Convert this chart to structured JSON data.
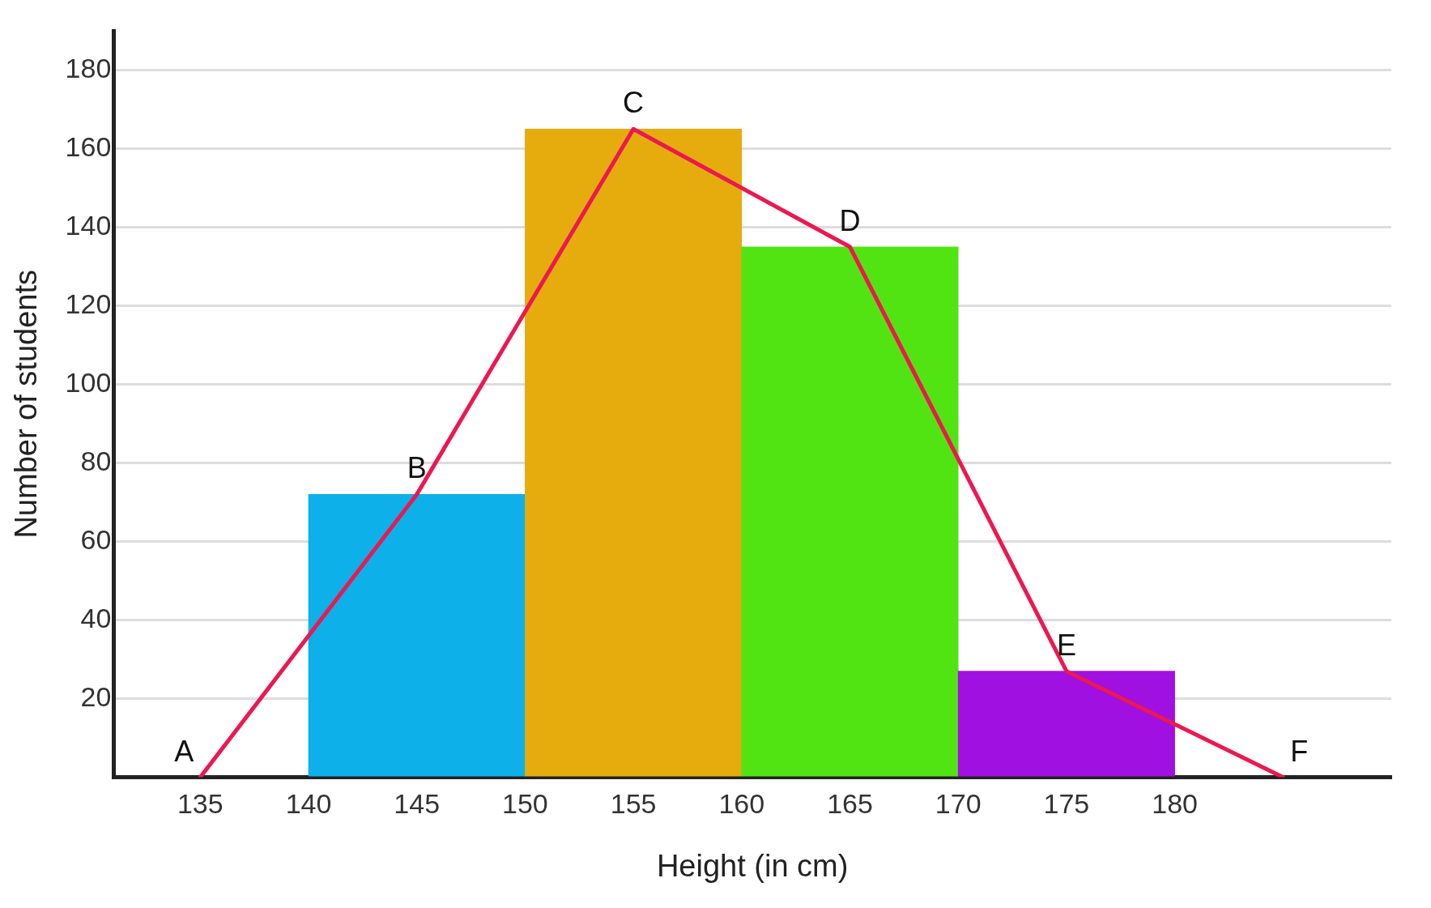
{
  "chart_data": {
    "type": "histogram",
    "xlabel": "Height (in cm)",
    "ylabel": "Number of students",
    "bins": [
      140,
      150,
      160,
      170,
      180
    ],
    "values": [
      72,
      165,
      135,
      27
    ],
    "colors": [
      "#0db0e8",
      "#e6ac0e",
      "#52e412",
      "#a010e0"
    ],
    "series": [
      {
        "type": "line",
        "color": "#ec1850",
        "x": [
          135,
          145,
          155,
          165,
          175,
          185
        ],
        "values": [
          0,
          72,
          165,
          135,
          27,
          0
        ]
      }
    ],
    "xlim": [
      131,
      190
    ],
    "xticks": [
      135,
      140,
      145,
      150,
      155,
      160,
      165,
      170,
      175,
      180
    ],
    "ylim": [
      0,
      190
    ],
    "yticks": [
      {
        "value": 0,
        "label": null
      },
      20,
      40,
      60,
      80,
      100,
      120,
      140,
      160,
      180
    ],
    "grid": "y",
    "legend": false,
    "marker": "none",
    "line_style": "solid",
    "annotations": [
      {
        "text": "A",
        "x": 135,
        "y": 0
      },
      {
        "text": "B",
        "x": 145,
        "y": 72
      },
      {
        "text": "C",
        "x": 155,
        "y": 165
      },
      {
        "text": "D",
        "x": 165,
        "y": 135
      },
      {
        "text": "E",
        "x": 175,
        "y": 27
      },
      {
        "text": "F",
        "x": 185,
        "y": 0
      }
    ]
  }
}
